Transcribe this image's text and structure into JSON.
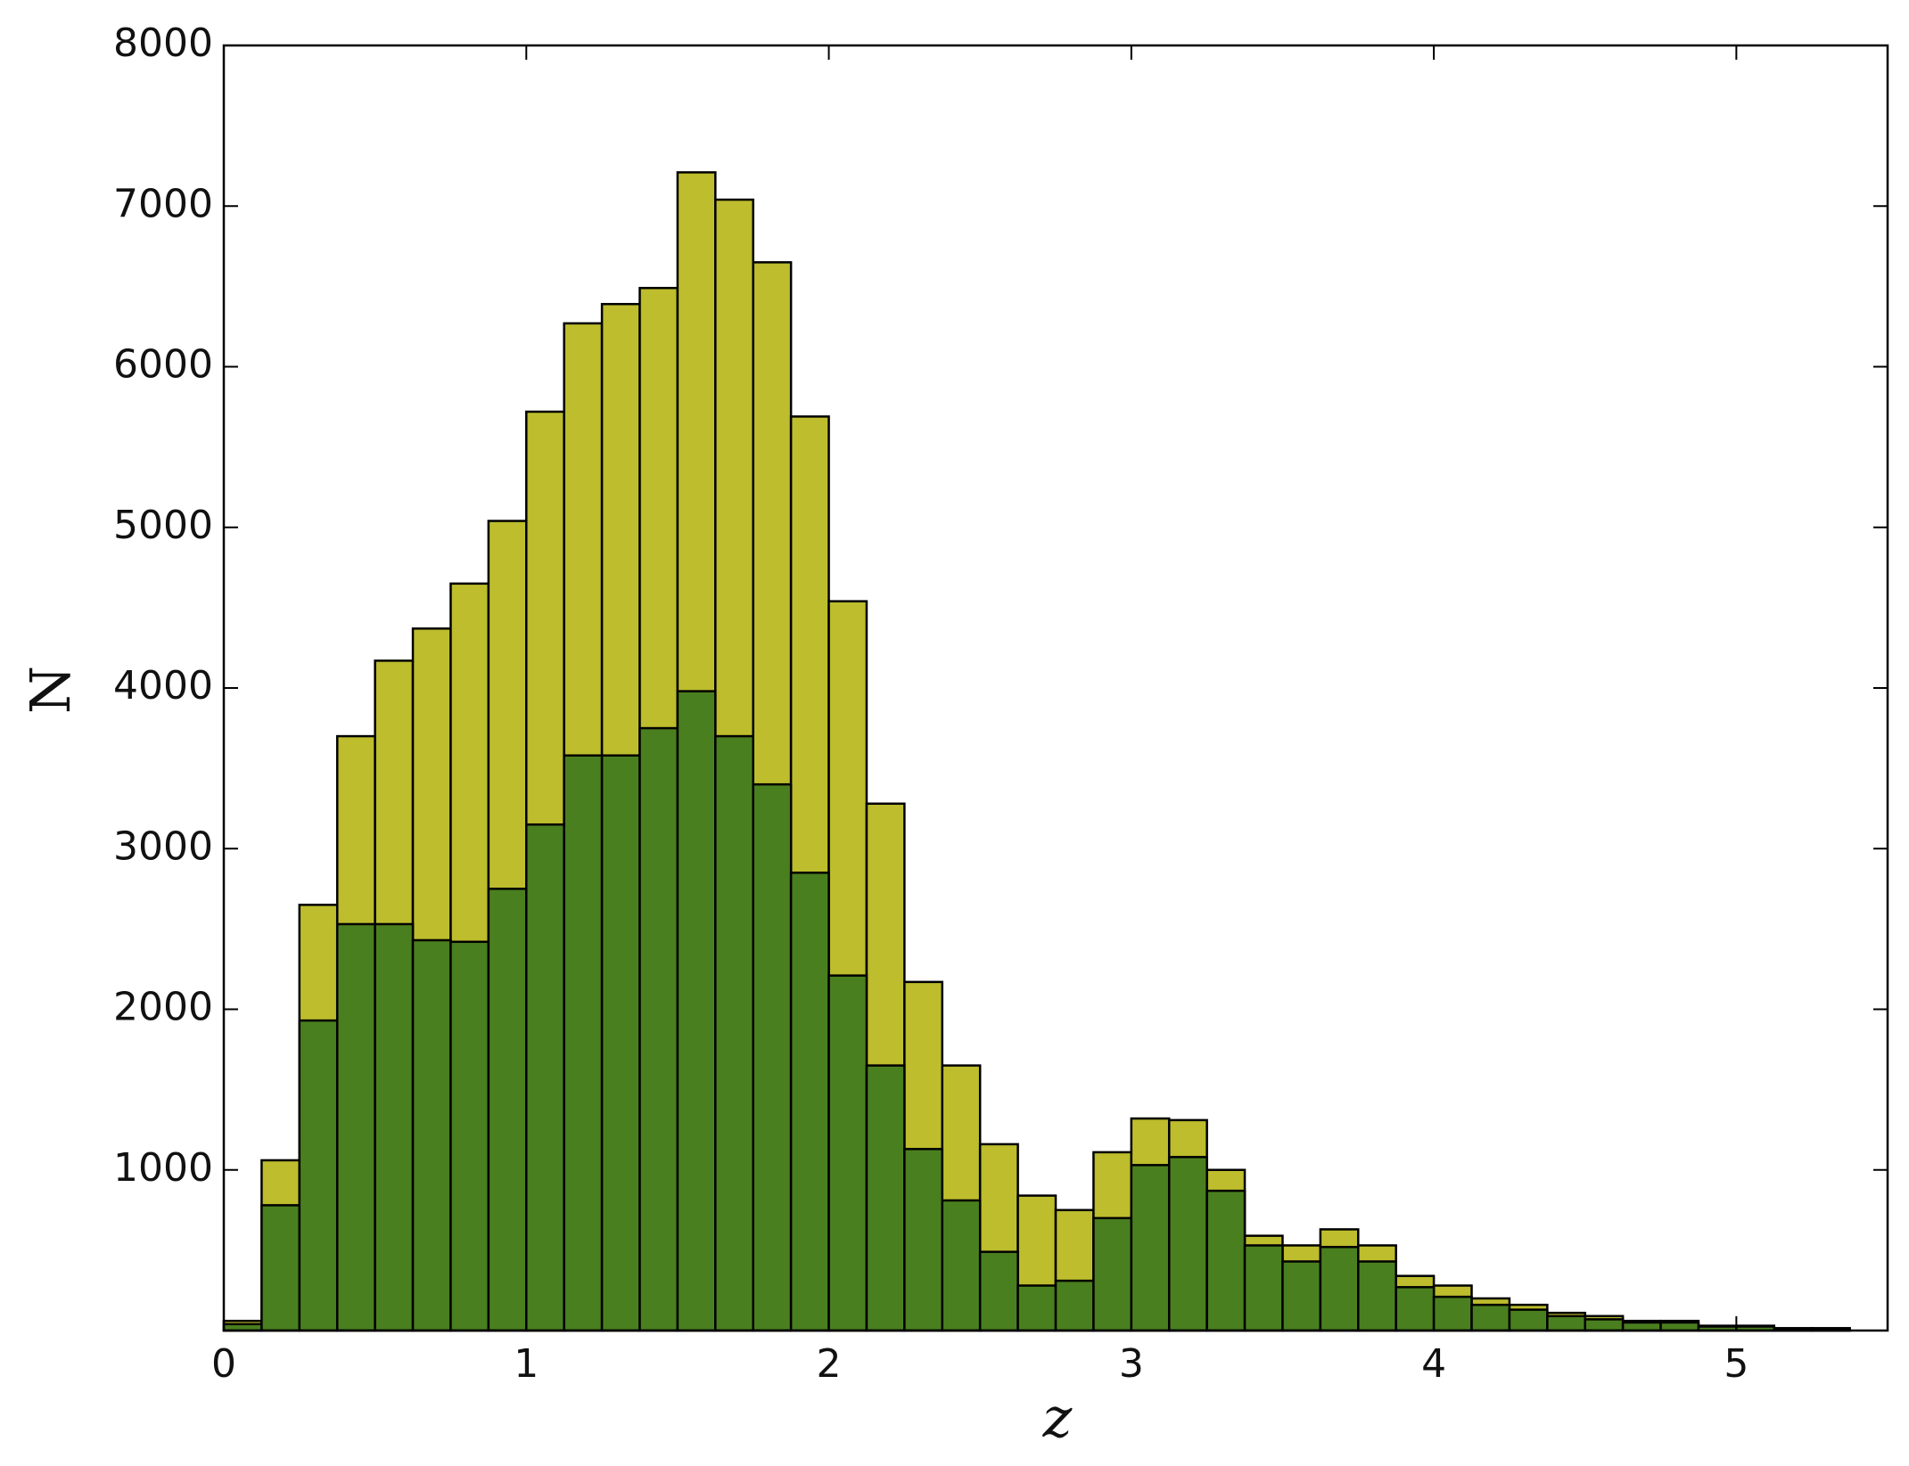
{
  "chart_data": {
    "type": "histogram",
    "x_label": "z",
    "y_label": "N",
    "bins": [
      0,
      0.125,
      0.25,
      0.375,
      0.5,
      0.625,
      0.75,
      0.875,
      1,
      1.125,
      1.25,
      1.375,
      1.5,
      1.625,
      1.75,
      1.875,
      2,
      2.125,
      2.25,
      2.375,
      2.5,
      2.625,
      2.75,
      2.875,
      3,
      3.125,
      3.25,
      3.375,
      3.5,
      3.625,
      3.75,
      3.875,
      4,
      4.125,
      4.25,
      4.375,
      4.5,
      4.625,
      4.75,
      4.875,
      5,
      5.125,
      5.25,
      5.375
    ],
    "series": [
      {
        "color": "#bdbd2d",
        "values": [
          60,
          1060,
          2650,
          3700,
          4170,
          4370,
          4650,
          5040,
          5720,
          6270,
          6390,
          6490,
          7210,
          7040,
          6650,
          5690,
          4540,
          3280,
          2170,
          1650,
          1160,
          840,
          750,
          1110,
          1320,
          1310,
          1000,
          590,
          530,
          630,
          530,
          340,
          280,
          200,
          160,
          110,
          90,
          60,
          60,
          30,
          30,
          15,
          15
        ]
      },
      {
        "color": "#4a7f1f",
        "values": [
          40,
          780,
          1930,
          2530,
          2530,
          2430,
          2420,
          2750,
          3150,
          3580,
          3580,
          3750,
          3980,
          3700,
          3400,
          2850,
          2210,
          1650,
          1130,
          810,
          490,
          280,
          310,
          700,
          1030,
          1080,
          870,
          530,
          430,
          520,
          430,
          270,
          210,
          160,
          130,
          90,
          70,
          50,
          50,
          25,
          25,
          12,
          12
        ]
      }
    ],
    "xlim": [
      0,
      5.5
    ],
    "xticks": [
      0,
      1,
      2,
      3,
      4,
      5
    ],
    "ylim": [
      0,
      8000
    ],
    "yticks": [
      1000,
      2000,
      3000,
      4000,
      5000,
      6000,
      7000,
      8000
    ]
  }
}
